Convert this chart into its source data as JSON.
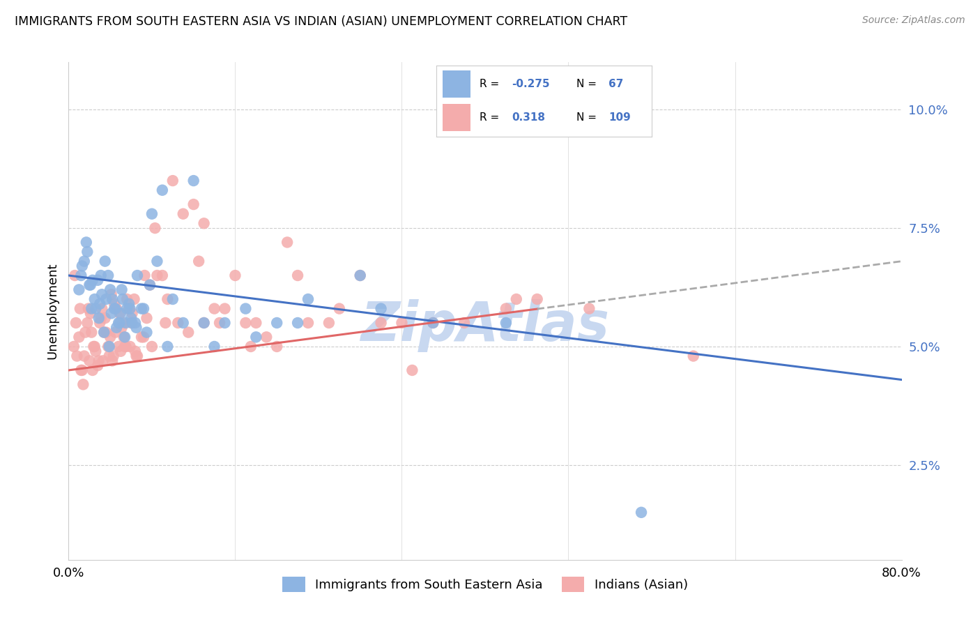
{
  "title": "IMMIGRANTS FROM SOUTH EASTERN ASIA VS INDIAN (ASIAN) UNEMPLOYMENT CORRELATION CHART",
  "source": "Source: ZipAtlas.com",
  "ylabel": "Unemployment",
  "yticks": [
    2.5,
    5.0,
    7.5,
    10.0
  ],
  "ytick_labels": [
    "2.5%",
    "5.0%",
    "7.5%",
    "10.0%"
  ],
  "xmin": 0.0,
  "xmax": 80.0,
  "ymin": 0.5,
  "ymax": 11.0,
  "color_blue": "#8DB4E2",
  "color_pink": "#F4ACAC",
  "line_blue": "#4472C4",
  "line_pink": "#E06666",
  "line_dash": "#AAAAAA",
  "watermark_color": "#C8D8F0",
  "blue_line_x0": 0.0,
  "blue_line_y0": 6.5,
  "blue_line_x1": 80.0,
  "blue_line_y1": 4.3,
  "pink_line_x0": 0.0,
  "pink_line_y0": 4.5,
  "pink_line_x1": 80.0,
  "pink_line_y1": 6.8,
  "pink_solid_end": 45.0,
  "blue_scatter_x": [
    1.0,
    1.2,
    1.5,
    1.8,
    2.0,
    2.2,
    2.5,
    2.8,
    3.0,
    3.2,
    3.5,
    3.8,
    4.0,
    4.2,
    4.5,
    4.8,
    5.0,
    5.2,
    5.5,
    5.8,
    6.0,
    6.5,
    7.0,
    7.5,
    8.0,
    9.0,
    10.0,
    12.0,
    15.0,
    18.0,
    2.1,
    2.6,
    3.1,
    3.6,
    4.1,
    4.6,
    5.1,
    5.6,
    6.1,
    6.6,
    7.2,
    8.5,
    11.0,
    14.0,
    17.0,
    20.0,
    23.0,
    28.0,
    35.0,
    55.0,
    1.3,
    1.7,
    2.3,
    2.9,
    3.4,
    3.9,
    4.4,
    4.9,
    5.4,
    5.9,
    6.4,
    7.8,
    9.5,
    13.0,
    22.0,
    30.0,
    42.0
  ],
  "blue_scatter_y": [
    6.2,
    6.5,
    6.8,
    7.0,
    6.3,
    5.8,
    6.0,
    6.4,
    5.9,
    6.1,
    6.8,
    6.5,
    6.2,
    6.0,
    5.8,
    5.5,
    5.7,
    6.0,
    5.5,
    5.9,
    5.6,
    5.4,
    5.8,
    5.3,
    7.8,
    8.3,
    6.0,
    8.5,
    5.5,
    5.2,
    6.3,
    5.8,
    6.5,
    6.0,
    5.7,
    5.4,
    6.2,
    5.8,
    5.5,
    6.5,
    5.8,
    6.8,
    5.5,
    5.0,
    5.8,
    5.5,
    6.0,
    6.5,
    5.5,
    1.5,
    6.7,
    7.2,
    6.4,
    5.6,
    5.3,
    5.0,
    5.8,
    5.5,
    5.2,
    5.8,
    5.5,
    6.3,
    5.0,
    5.5,
    5.5,
    5.8,
    5.5
  ],
  "pink_scatter_x": [
    0.5,
    0.8,
    1.0,
    1.2,
    1.5,
    1.8,
    2.0,
    2.2,
    2.5,
    2.8,
    3.0,
    3.2,
    3.5,
    3.8,
    4.0,
    4.2,
    4.5,
    4.8,
    5.0,
    5.2,
    5.5,
    5.8,
    6.0,
    6.5,
    7.0,
    7.5,
    8.0,
    9.0,
    10.0,
    11.0,
    12.0,
    13.0,
    15.0,
    18.0,
    20.0,
    23.0,
    28.0,
    35.0,
    45.0,
    60.0,
    1.1,
    1.6,
    2.1,
    2.6,
    3.1,
    3.6,
    4.1,
    4.6,
    5.1,
    5.6,
    6.1,
    6.6,
    7.2,
    8.5,
    11.5,
    14.0,
    17.0,
    22.0,
    30.0,
    42.0,
    0.7,
    1.3,
    1.9,
    2.4,
    2.9,
    3.4,
    3.9,
    4.4,
    4.9,
    5.4,
    5.9,
    6.4,
    7.8,
    9.5,
    13.0,
    16.0,
    19.0,
    25.0,
    32.0,
    50.0,
    0.6,
    1.4,
    2.3,
    3.3,
    4.3,
    5.3,
    6.3,
    7.3,
    8.3,
    9.3,
    10.5,
    12.5,
    14.5,
    17.5,
    21.0,
    26.0,
    33.0,
    38.0,
    43.0
  ],
  "pink_scatter_y": [
    5.0,
    4.8,
    5.2,
    4.5,
    4.8,
    5.5,
    4.7,
    5.3,
    5.0,
    4.6,
    5.5,
    5.8,
    5.6,
    5.0,
    5.2,
    4.7,
    5.3,
    5.0,
    4.9,
    5.5,
    5.0,
    5.8,
    5.5,
    4.8,
    5.2,
    5.6,
    5.0,
    6.5,
    8.5,
    7.8,
    8.0,
    7.6,
    5.8,
    5.5,
    5.0,
    5.5,
    6.5,
    5.5,
    6.0,
    4.8,
    5.8,
    5.3,
    5.7,
    4.9,
    5.6,
    5.3,
    6.1,
    5.8,
    5.4,
    6.0,
    5.7,
    4.8,
    5.2,
    6.5,
    5.3,
    5.8,
    5.5,
    6.5,
    5.5,
    5.8,
    5.5,
    4.5,
    5.8,
    5.0,
    4.7,
    5.3,
    4.8,
    5.9,
    5.7,
    5.0,
    5.0,
    4.9,
    6.3,
    6.0,
    5.5,
    6.5,
    5.2,
    5.5,
    5.5,
    5.8,
    6.5,
    4.2,
    4.5,
    4.7,
    4.8,
    5.2,
    6.0,
    6.5,
    7.5,
    5.5,
    5.5,
    6.8,
    5.5,
    5.0,
    7.2,
    5.8,
    4.5,
    5.5,
    6.0
  ]
}
